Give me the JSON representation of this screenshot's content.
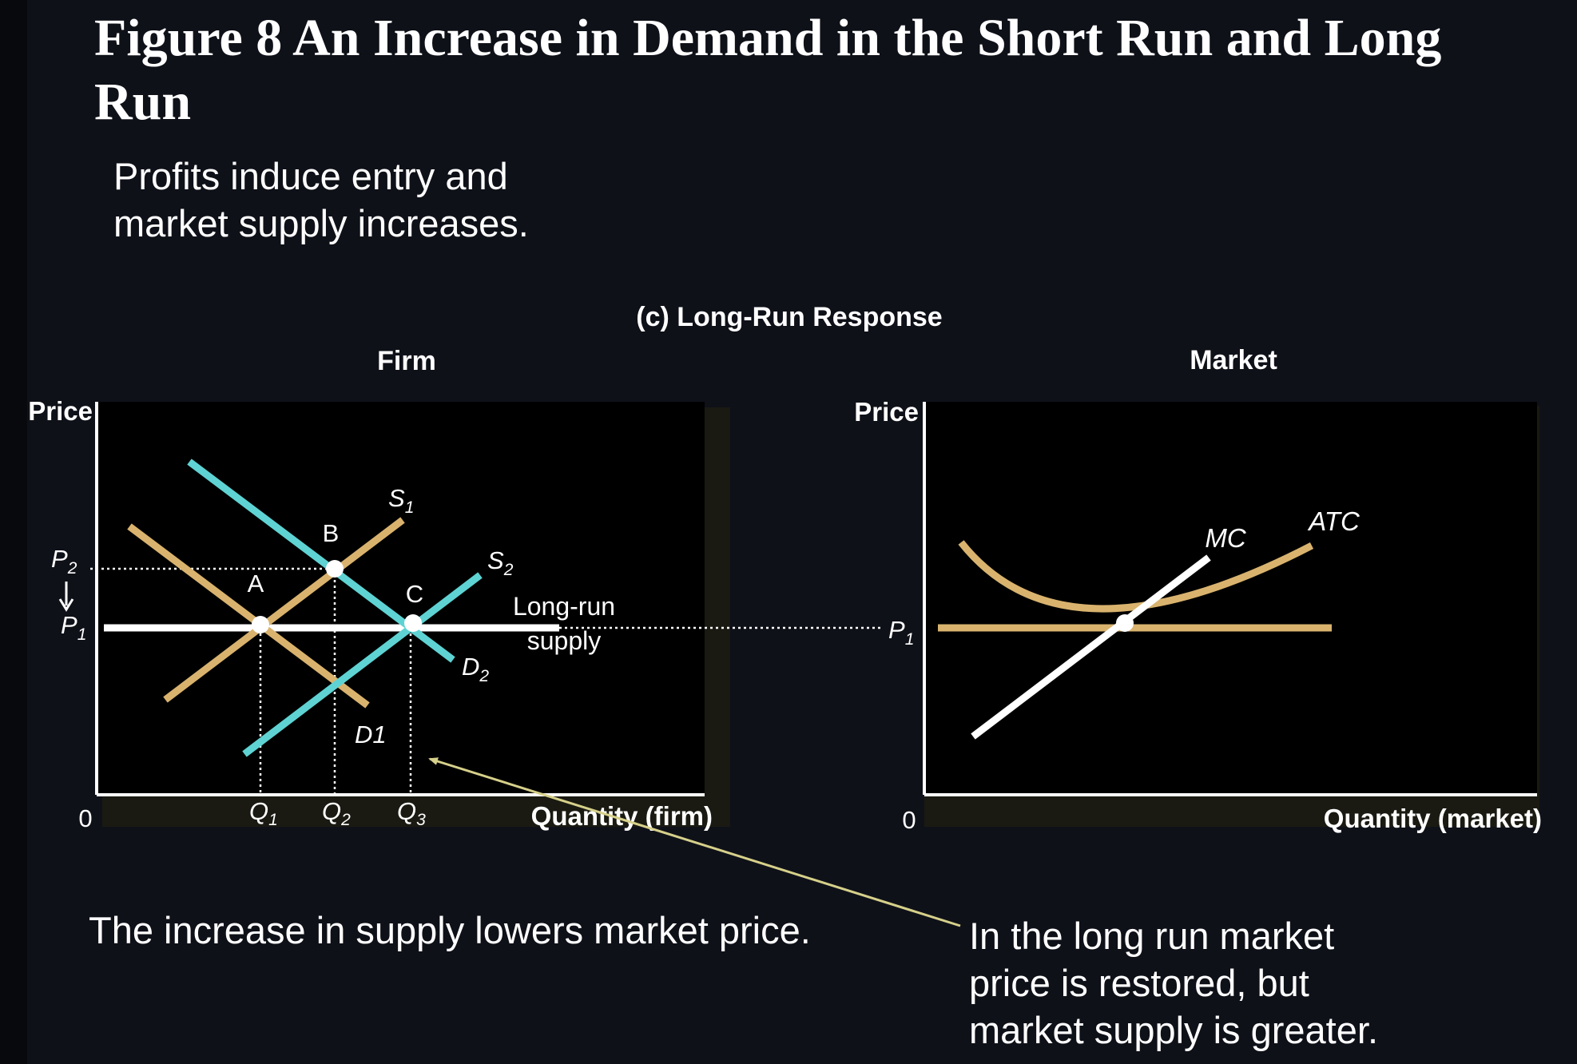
{
  "slide": {
    "title": "Figure 8 An Increase in Demand in the Short Run and Long Run",
    "subtitle": "Profits induce entry and\nmarket supply increases.",
    "caption_left": "The increase in supply lowers market price.",
    "caption_right": "In the long run market\nprice is restored, but\nmarket supply is greater."
  },
  "diagram": {
    "panel_title": "(c) Long-Run Response",
    "firm": {
      "heading": "Firm",
      "y_axis_label": "Price",
      "x_axis_label": "Quantity (firm)",
      "origin": "0",
      "price_labels": {
        "p2": "P",
        "p2_sub": "2",
        "p1": "P",
        "p1_sub": "1"
      },
      "quantity_labels": {
        "q1": "Q",
        "q1_sub": "1",
        "q2": "Q",
        "q2_sub": "2",
        "q3": "Q",
        "q3_sub": "3"
      },
      "points": {
        "a": "A",
        "b": "B",
        "c": "C"
      },
      "curves": {
        "s1": "S",
        "s1_sub": "1",
        "s2": "S",
        "s2_sub": "2",
        "d1": "D1",
        "d2": "D",
        "d2_sub": "2",
        "lr_line1": "Long-run",
        "lr_line2": "supply"
      }
    },
    "market": {
      "heading": "Market",
      "y_axis_label": "Price",
      "x_axis_label": "Quantity (market)",
      "origin": "0",
      "price_label": "P",
      "price_label_sub": "1",
      "curves": {
        "mc": "MC",
        "atc": "ATC"
      }
    },
    "colors": {
      "tan": "#d9b36e",
      "cyan": "#5fd3d3",
      "white": "#ffffff",
      "arrow": "#d6d08a",
      "plot_bg": "#000000",
      "slide_bg": "#0f1119"
    }
  }
}
